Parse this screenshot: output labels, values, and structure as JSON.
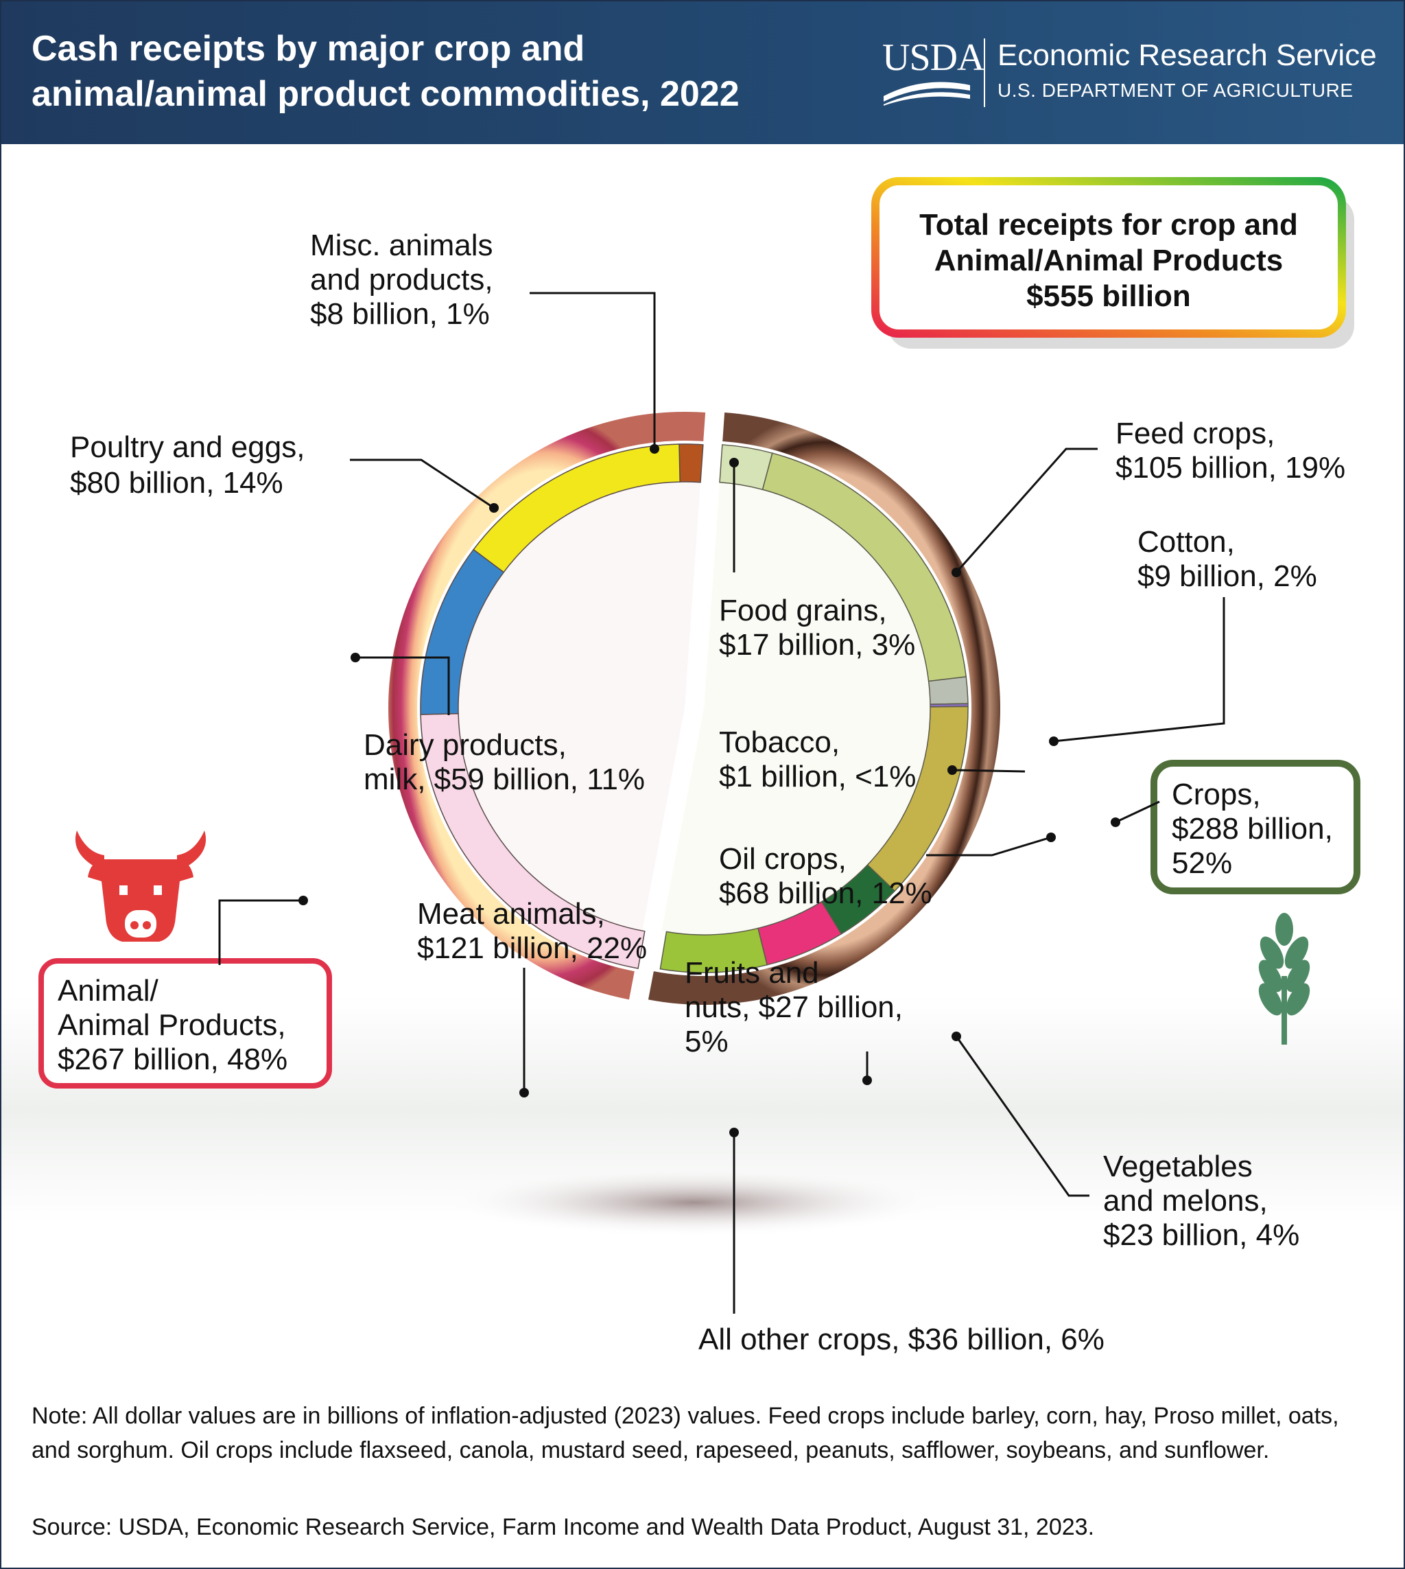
{
  "header": {
    "title_line1": "Cash receipts by major crop and",
    "title_line2": "animal/animal product commodities, 2022",
    "logo_text": "USDA",
    "agency": "Economic Research Service",
    "department": "U.S. DEPARTMENT OF AGRICULTURE"
  },
  "total_box": {
    "line1": "Total receipts for crop and",
    "line2": "Animal/Animal Products",
    "line3": "$555 billion"
  },
  "animal_box": {
    "line1": "Animal/",
    "line2": "Animal Products,",
    "line3": "$267 billion, 48%"
  },
  "crops_box": {
    "line1": "Crops,",
    "line2": "$288 billion,",
    "line3": "52%"
  },
  "labels": {
    "misc": [
      "Misc. animals",
      "and products,",
      "$8 billion, 1%"
    ],
    "poultry": [
      "Poultry and eggs,",
      "$80 billion, 14%"
    ],
    "dairy": [
      "Dairy products,",
      "milk, $59 billion, 11%"
    ],
    "meat": [
      "Meat animals,",
      "$121 billion, 22%"
    ],
    "feed": [
      "Feed crops,",
      "$105 billion, 19%"
    ],
    "cotton": [
      "Cotton,",
      "$9 billion, 2%"
    ],
    "food_grains": [
      "Food grains,",
      "$17 billion, 3%"
    ],
    "tobacco": [
      "Tobacco,",
      "$1 billion, <1%"
    ],
    "oil": [
      "Oil crops,",
      "$68 billion, 12%"
    ],
    "fruits": [
      "Fruits and",
      "nuts, $27 billion,",
      "5%"
    ],
    "vegetables": [
      "Vegetables",
      "and melons,",
      "$23 billion, 4%"
    ],
    "other": [
      "All other crops, $36 billion, 6%"
    ]
  },
  "note": "Note: All dollar values are in billions of inflation-adjusted (2023) values. Feed crops include barley, corn, hay, Proso millet, oats, and sorghum. Oil crops include flaxseed, canola, mustard seed, rapeseed, peanuts, safflower, soybeans, and sunflower.",
  "source": "Source: USDA, Economic Research Service, Farm Income and Wealth Data Product, August 31, 2023.",
  "chart_data": {
    "type": "pie",
    "unit": "billion dollars",
    "groups": [
      {
        "name": "Animal/Animal Products",
        "value": 267,
        "percent": 48,
        "color": "#a8324a",
        "segments": [
          {
            "name": "Misc. animals and products",
            "value": 8,
            "percent": 1,
            "color": "#b5541f"
          },
          {
            "name": "Poultry and eggs",
            "value": 80,
            "percent": 14,
            "color": "#f2e71a"
          },
          {
            "name": "Dairy products, milk",
            "value": 59,
            "percent": 11,
            "color": "#3a85c8"
          },
          {
            "name": "Meat animals",
            "value": 121,
            "percent": 22,
            "color": "#f8d8e6"
          }
        ]
      },
      {
        "name": "Crops",
        "value": 288,
        "percent": 52,
        "color": "#6b4434",
        "segments": [
          {
            "name": "Food grains",
            "value": 17,
            "percent": 3,
            "color": "#d6e3b6"
          },
          {
            "name": "Feed crops",
            "value": 105,
            "percent": 19,
            "color": "#c3d17f"
          },
          {
            "name": "Cotton",
            "value": 9,
            "percent": 2,
            "color": "#b9bfb3"
          },
          {
            "name": "Tobacco",
            "value": 1,
            "percent": "<1",
            "color": "#8a6fc0"
          },
          {
            "name": "Oil crops",
            "value": 68,
            "percent": 12,
            "color": "#c4b24a"
          },
          {
            "name": "Vegetables and melons",
            "value": 23,
            "percent": 4,
            "color": "#246b37"
          },
          {
            "name": "Fruits and nuts",
            "value": 27,
            "percent": 5,
            "color": "#e8337a"
          },
          {
            "name": "All other crops",
            "value": 36,
            "percent": 6,
            "color": "#9cc43a"
          }
        ]
      }
    ],
    "total": {
      "name": "Total receipts for crop and Animal/Animal Products",
      "value": 555
    }
  }
}
